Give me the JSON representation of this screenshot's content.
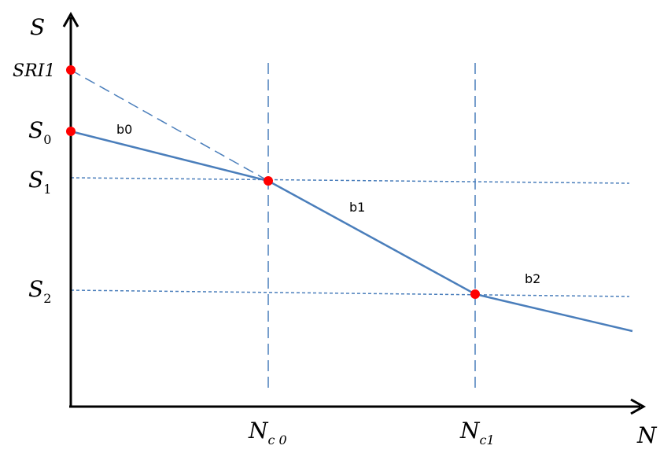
{
  "axes": {
    "x_label": "N",
    "y_label": "S"
  },
  "y_ticks": [
    {
      "key": "sri1",
      "text": "SRI1",
      "sub": ""
    },
    {
      "key": "s0",
      "text": "S",
      "sub": "0"
    },
    {
      "key": "s1",
      "text": "S",
      "sub": "1"
    },
    {
      "key": "s2",
      "text": "S",
      "sub": "2"
    }
  ],
  "x_ticks": [
    {
      "key": "nc0",
      "text": "N",
      "sub": "c 0"
    },
    {
      "key": "nc1",
      "text": "N",
      "sub": "c1"
    }
  ],
  "segment_labels": {
    "b0": "b0",
    "b1": "b1",
    "b2": "b2"
  },
  "colors": {
    "axis": "#000000",
    "line": "#4a7ebb",
    "point": "#ff0000"
  }
}
